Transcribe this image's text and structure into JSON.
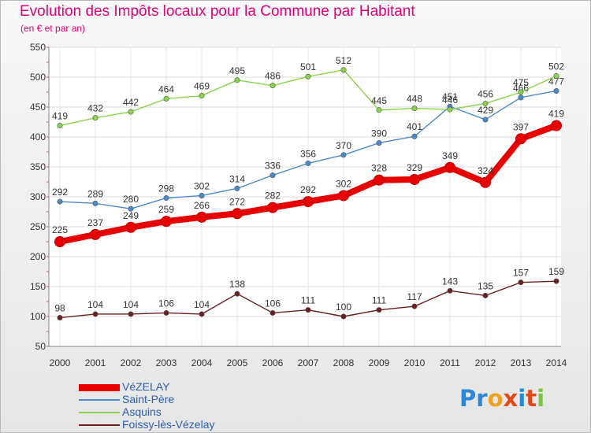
{
  "chart_data": {
    "type": "line",
    "title": "Evolution des Impôts locaux pour la Commune par Habitant",
    "subtitle": "(en € et par an)",
    "x": [
      "2000",
      "2001",
      "2002",
      "2003",
      "2004",
      "2005",
      "2006",
      "2007",
      "2008",
      "2009",
      "2010",
      "2011",
      "2012",
      "2013",
      "2014"
    ],
    "y_ticks": [
      50,
      100,
      150,
      200,
      250,
      300,
      350,
      400,
      450,
      500,
      550
    ],
    "ylim": [
      50,
      550
    ],
    "grid": true,
    "legend_position": "bottom-left",
    "series": [
      {
        "name": "VéZELAY",
        "color": "#e80000",
        "emphasis": true,
        "values": [
          225,
          237,
          249,
          259,
          266,
          272,
          282,
          292,
          302,
          328,
          329,
          349,
          324,
          397,
          419
        ]
      },
      {
        "name": "Saint-Père",
        "color": "#4a8acb",
        "values": [
          292,
          289,
          280,
          298,
          302,
          314,
          336,
          356,
          370,
          390,
          401,
          451,
          429,
          466,
          477
        ]
      },
      {
        "name": "Asquins",
        "color": "#8bd44a",
        "values": [
          419,
          432,
          442,
          464,
          469,
          495,
          486,
          501,
          512,
          445,
          448,
          446,
          456,
          475,
          502
        ]
      },
      {
        "name": "Foissy-lès-Vézelay",
        "color": "#6b1f1f",
        "values": [
          98,
          104,
          104,
          106,
          104,
          138,
          106,
          111,
          100,
          111,
          117,
          143,
          135,
          157,
          159
        ]
      }
    ]
  },
  "logo": {
    "text": "Proxiti"
  }
}
